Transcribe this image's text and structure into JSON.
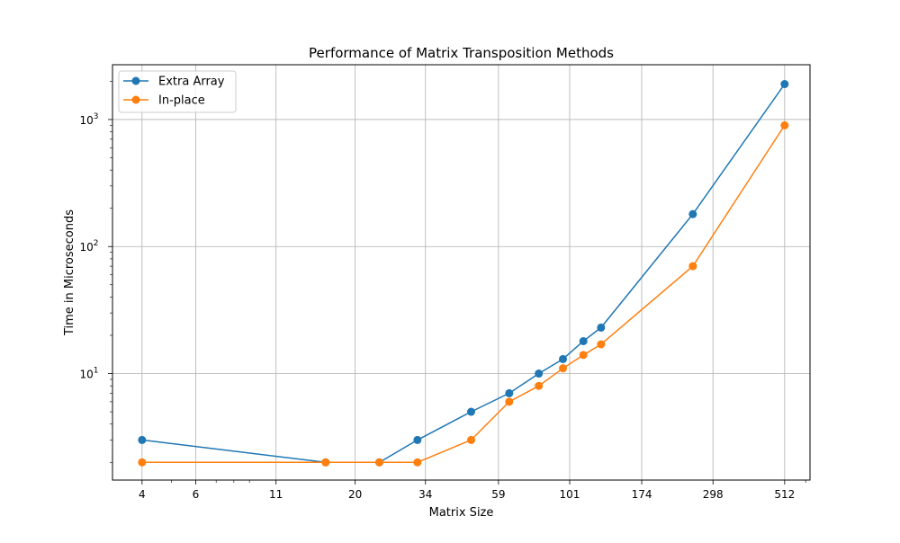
{
  "chart_data": {
    "type": "line",
    "title": "Performance of Matrix Transposition Methods",
    "xlabel": "Matrix Size",
    "ylabel": "Time in Microseconds",
    "x_scale": "log",
    "y_scale": "log",
    "xlim": [
      3.2,
      620
    ],
    "ylim": [
      1.45,
      2700
    ],
    "grid": true,
    "legend_position": "top-left",
    "x_ticks": [
      4,
      6,
      11,
      20,
      34,
      59,
      101,
      174,
      298,
      512
    ],
    "y_ticks": [
      {
        "value": 10,
        "base": "10",
        "exp": "1"
      },
      {
        "value": 100,
        "base": "10",
        "exp": "2"
      },
      {
        "value": 1000,
        "base": "10",
        "exp": "3"
      }
    ],
    "series": [
      {
        "name": "Extra Array",
        "color": "#1f77b4",
        "x": [
          4,
          16,
          24,
          32,
          48,
          64,
          80,
          96,
          112,
          128,
          256,
          512
        ],
        "y": [
          3,
          2,
          2,
          3,
          5,
          7,
          10,
          13,
          18,
          23,
          180,
          1900
        ]
      },
      {
        "name": "In-place",
        "color": "#ff7f0e",
        "x": [
          4,
          16,
          24,
          32,
          48,
          64,
          80,
          96,
          112,
          128,
          256,
          512
        ],
        "y": [
          2,
          2,
          2,
          2,
          3,
          6,
          8,
          11,
          14,
          17,
          70,
          900
        ]
      }
    ]
  }
}
